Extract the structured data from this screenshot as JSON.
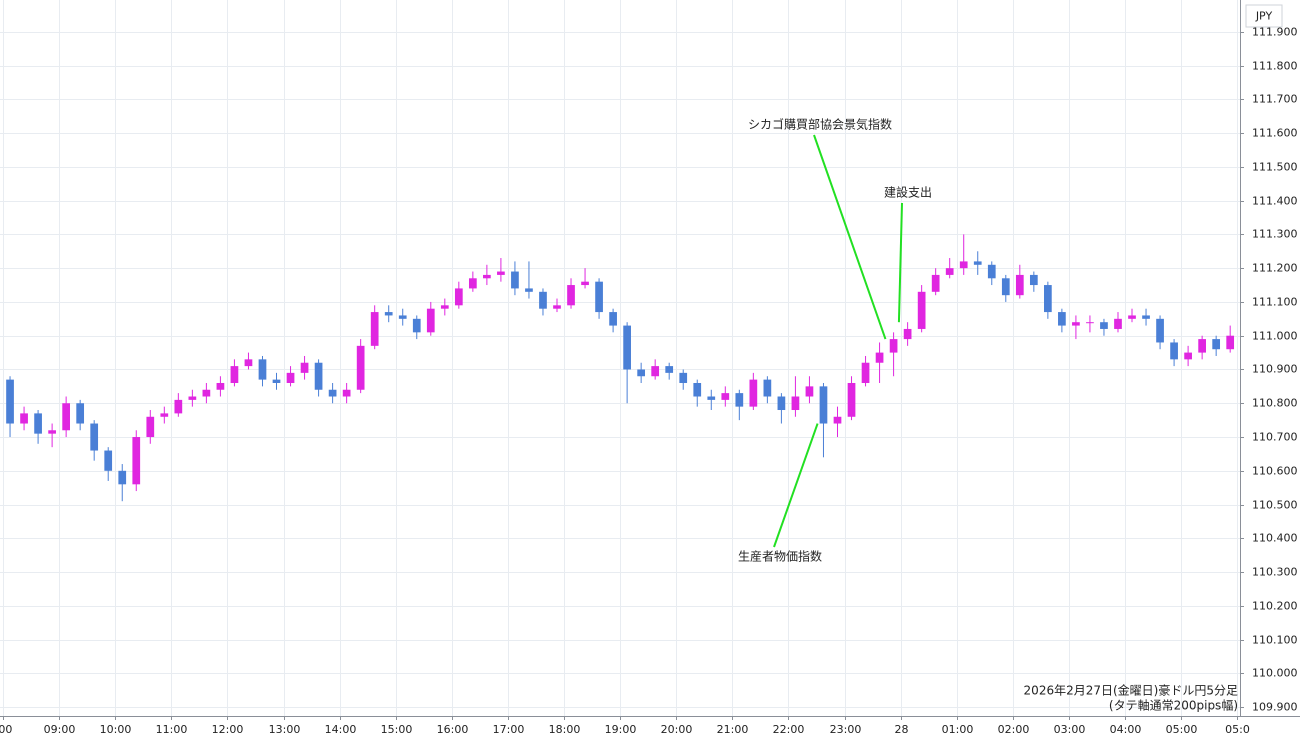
{
  "chart_data": {
    "type": "candlestick",
    "axis_unit": "JPY",
    "notes": [
      "2026年2月27日(金曜日)豪ドル円5分足",
      "(タテ軸通常200pips幅)"
    ],
    "up_color": "#e026e0",
    "down_color": "#4a7fd6",
    "grid": true,
    "xlim": [
      7.946,
      30.05
    ],
    "ylim": [
      109.874,
      111.994
    ],
    "xticks": [
      {
        "value": 8,
        "label": ":00"
      },
      {
        "value": 9,
        "label": "09:00"
      },
      {
        "value": 10,
        "label": "10:00"
      },
      {
        "value": 11,
        "label": "11:00"
      },
      {
        "value": 12,
        "label": "12:00"
      },
      {
        "value": 13,
        "label": "13:00"
      },
      {
        "value": 14,
        "label": "14:00"
      },
      {
        "value": 15,
        "label": "15:00"
      },
      {
        "value": 16,
        "label": "16:00"
      },
      {
        "value": 17,
        "label": "17:00"
      },
      {
        "value": 18,
        "label": "18:00"
      },
      {
        "value": 19,
        "label": "19:00"
      },
      {
        "value": 20,
        "label": "20:00"
      },
      {
        "value": 21,
        "label": "21:00"
      },
      {
        "value": 22,
        "label": "22:00"
      },
      {
        "value": 23,
        "label": "23:00"
      },
      {
        "value": 24,
        "label": "28"
      },
      {
        "value": 25,
        "label": "01:00"
      },
      {
        "value": 26,
        "label": "02:00"
      },
      {
        "value": 27,
        "label": "03:00"
      },
      {
        "value": 28,
        "label": "04:00"
      },
      {
        "value": 29,
        "label": "05:00"
      },
      {
        "value": 30,
        "label": "05:0"
      }
    ],
    "yticks": [
      {
        "value": 109.9,
        "label": "109.900"
      },
      {
        "value": 110.0,
        "label": "110.000"
      },
      {
        "value": 110.1,
        "label": "110.100"
      },
      {
        "value": 110.2,
        "label": "110.200"
      },
      {
        "value": 110.3,
        "label": "110.300"
      },
      {
        "value": 110.4,
        "label": "110.400"
      },
      {
        "value": 110.5,
        "label": "110.500"
      },
      {
        "value": 110.6,
        "label": "110.600"
      },
      {
        "value": 110.7,
        "label": "110.700"
      },
      {
        "value": 110.8,
        "label": "110.800"
      },
      {
        "value": 110.9,
        "label": "110.900"
      },
      {
        "value": 111.0,
        "label": "111.000"
      },
      {
        "value": 111.1,
        "label": "111.100"
      },
      {
        "value": 111.2,
        "label": "111.200"
      },
      {
        "value": 111.3,
        "label": "111.300"
      },
      {
        "value": 111.4,
        "label": "111.400"
      },
      {
        "value": 111.5,
        "label": "111.500"
      },
      {
        "value": 111.6,
        "label": "111.600"
      },
      {
        "value": 111.7,
        "label": "111.700"
      },
      {
        "value": 111.8,
        "label": "111.800"
      },
      {
        "value": 111.9,
        "label": "111.900"
      }
    ],
    "x": [
      8,
      8.25,
      8.5,
      8.75,
      9,
      9.25,
      9.5,
      9.75,
      10,
      10.25,
      10.5,
      10.75,
      11,
      11.25,
      11.5,
      11.75,
      12,
      12.25,
      12.5,
      12.75,
      13,
      13.25,
      13.5,
      13.75,
      14,
      14.25,
      14.5,
      14.75,
      15,
      15.25,
      15.5,
      15.75,
      16,
      16.25,
      16.5,
      16.75,
      17,
      17.25,
      17.5,
      17.75,
      18,
      18.25,
      18.5,
      18.75,
      19,
      19.25,
      19.5,
      19.75,
      20,
      20.25,
      20.5,
      20.75,
      21,
      21.25,
      21.5,
      21.75,
      22,
      22.25,
      22.5,
      22.75,
      23,
      23.25,
      23.5,
      23.75,
      24,
      24.25,
      24.5,
      24.75,
      25,
      25.25,
      25.5,
      25.75,
      26,
      26.25,
      26.5,
      26.75,
      27,
      27.25,
      27.5,
      27.75,
      28,
      28.25,
      28.5,
      28.75,
      29,
      29.25,
      29.5,
      29.75
    ],
    "open": [
      110.87,
      110.74,
      110.77,
      110.71,
      110.72,
      110.8,
      110.74,
      110.66,
      110.6,
      110.56,
      110.7,
      110.76,
      110.77,
      110.81,
      110.82,
      110.84,
      110.86,
      110.91,
      110.93,
      110.87,
      110.86,
      110.89,
      110.92,
      110.84,
      110.82,
      110.84,
      110.97,
      111.07,
      111.06,
      111.05,
      111.01,
      111.08,
      111.09,
      111.14,
      111.17,
      111.18,
      111.19,
      111.14,
      111.13,
      111.08,
      111.09,
      111.15,
      111.16,
      111.07,
      111.03,
      110.9,
      110.88,
      110.91,
      110.89,
      110.86,
      110.82,
      110.81,
      110.83,
      110.79,
      110.87,
      110.82,
      110.78,
      110.82,
      110.85,
      110.74,
      110.76,
      110.86,
      110.92,
      110.95,
      110.99,
      111.02,
      111.13,
      111.18,
      111.2,
      111.22,
      111.21,
      111.17,
      111.12,
      111.18,
      111.15,
      111.07,
      111.03,
      111.04,
      111.04,
      111.02,
      111.05,
      111.06,
      111.05,
      110.98,
      110.93,
      110.95,
      110.99,
      110.96
    ],
    "high": [
      110.88,
      110.79,
      110.78,
      110.74,
      110.82,
      110.81,
      110.75,
      110.67,
      110.62,
      110.72,
      110.78,
      110.79,
      110.83,
      110.84,
      110.86,
      110.88,
      110.93,
      110.95,
      110.94,
      110.89,
      110.91,
      110.94,
      110.93,
      110.86,
      110.86,
      110.99,
      111.09,
      111.09,
      111.08,
      111.06,
      111.1,
      111.11,
      111.16,
      111.19,
      111.21,
      111.23,
      111.22,
      111.22,
      111.14,
      111.11,
      111.17,
      111.2,
      111.17,
      111.08,
      111.04,
      110.92,
      110.93,
      110.92,
      110.9,
      110.87,
      110.84,
      110.85,
      110.84,
      110.89,
      110.88,
      110.83,
      110.88,
      110.88,
      110.86,
      110.79,
      110.88,
      110.94,
      110.98,
      111.01,
      111.04,
      111.15,
      111.2,
      111.23,
      111.3,
      111.25,
      111.22,
      111.18,
      111.21,
      111.19,
      111.16,
      111.08,
      111.06,
      111.06,
      111.05,
      111.07,
      111.08,
      111.08,
      111.06,
      110.99,
      110.97,
      111.0,
      111.0,
      111.03
    ],
    "low": [
      110.7,
      110.72,
      110.68,
      110.67,
      110.7,
      110.72,
      110.63,
      110.57,
      110.51,
      110.54,
      110.68,
      110.74,
      110.76,
      110.79,
      110.8,
      110.82,
      110.85,
      110.9,
      110.85,
      110.84,
      110.85,
      110.87,
      110.82,
      110.8,
      110.8,
      110.83,
      110.96,
      111.04,
      111.03,
      110.99,
      111.0,
      111.06,
      111.08,
      111.13,
      111.15,
      111.16,
      111.12,
      111.11,
      111.06,
      111.07,
      111.08,
      111.14,
      111.05,
      111.01,
      110.8,
      110.86,
      110.87,
      110.87,
      110.84,
      110.79,
      110.78,
      110.79,
      110.75,
      110.78,
      110.8,
      110.74,
      110.76,
      110.8,
      110.64,
      110.7,
      110.75,
      110.85,
      110.86,
      110.88,
      110.97,
      111.01,
      111.12,
      111.17,
      111.18,
      111.18,
      111.15,
      111.1,
      111.11,
      111.13,
      111.05,
      111.01,
      110.99,
      111.01,
      111.0,
      111.01,
      111.04,
      111.03,
      110.96,
      110.91,
      110.91,
      110.93,
      110.94,
      110.95
    ],
    "close": [
      110.74,
      110.77,
      110.71,
      110.72,
      110.8,
      110.74,
      110.66,
      110.6,
      110.56,
      110.7,
      110.76,
      110.77,
      110.81,
      110.82,
      110.84,
      110.86,
      110.91,
      110.93,
      110.87,
      110.86,
      110.89,
      110.92,
      110.84,
      110.82,
      110.84,
      110.97,
      111.07,
      111.06,
      111.05,
      111.01,
      111.08,
      111.09,
      111.14,
      111.17,
      111.18,
      111.19,
      111.14,
      111.13,
      111.08,
      111.09,
      111.15,
      111.16,
      111.07,
      111.03,
      110.9,
      110.88,
      110.91,
      110.89,
      110.86,
      110.82,
      110.81,
      110.83,
      110.79,
      110.87,
      110.82,
      110.78,
      110.82,
      110.85,
      110.74,
      110.76,
      110.86,
      110.92,
      110.95,
      110.99,
      111.02,
      111.13,
      111.18,
      111.2,
      111.22,
      111.21,
      111.17,
      111.12,
      111.18,
      111.15,
      111.07,
      111.03,
      111.04,
      111.04,
      111.02,
      111.05,
      111.06,
      111.05,
      110.98,
      110.93,
      110.95,
      110.99,
      110.96,
      111.0
    ],
    "annotations": [
      {
        "text": "シカゴ購買部協会景気指数",
        "x": 23.73,
        "y": 110.99
      },
      {
        "text": "建設支出",
        "x": 23.97,
        "y": 111.04
      },
      {
        "text": "生産者物価指数",
        "x": 22.52,
        "y": 110.74
      }
    ]
  }
}
